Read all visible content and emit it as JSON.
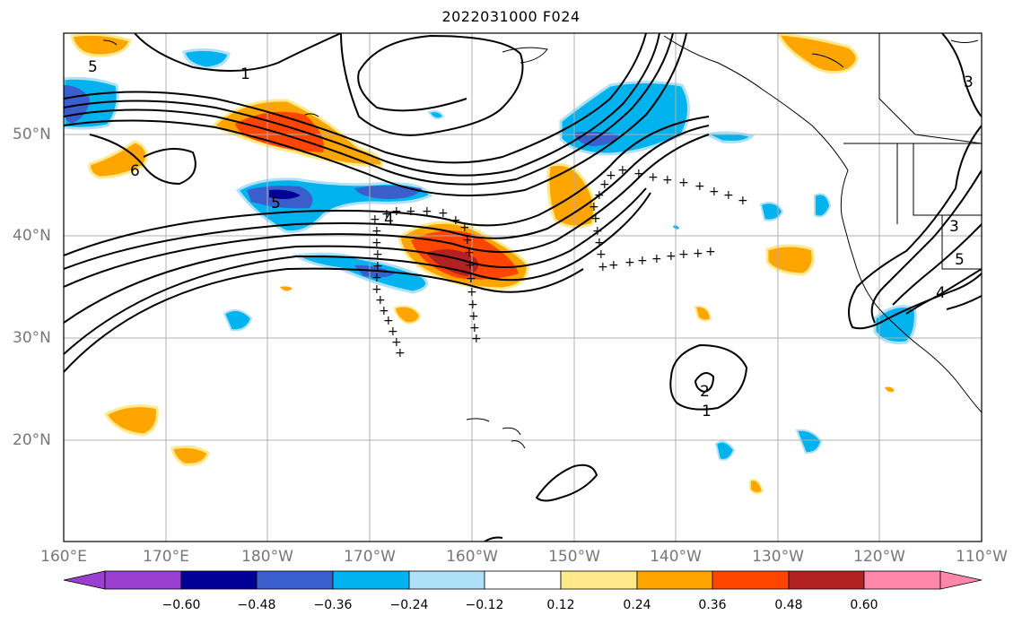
{
  "title": "2022031000 F024",
  "lon_labels": [
    "160°E",
    "170°E",
    "180°W",
    "170°W",
    "160°W",
    "150°W",
    "140°W",
    "130°W",
    "120°W",
    "110°W"
  ],
  "lat_labels": [
    "50°N",
    "40°N",
    "30°N",
    "20°N"
  ],
  "colorbar": {
    "ticks": [
      "−0.60",
      "−0.48",
      "−0.36",
      "−0.24",
      "−0.12",
      "0.12",
      "0.24",
      "0.36",
      "0.48",
      "0.60"
    ],
    "colors": [
      "#9a3fd0",
      "#000097",
      "#3a5fcd",
      "#00b2ee",
      "#aee0f7",
      "#ffffff",
      "#ffe98a",
      "#ffa500",
      "#ff4500",
      "#b22222",
      "#ff88aa"
    ]
  },
  "contour_labels": [
    {
      "text": "1"
    },
    {
      "text": "5"
    },
    {
      "text": "6"
    },
    {
      "text": "5"
    },
    {
      "text": "4"
    },
    {
      "text": "3"
    },
    {
      "text": "3"
    },
    {
      "text": "5"
    },
    {
      "text": "4"
    },
    {
      "text": "2"
    },
    {
      "text": "1"
    }
  ]
}
